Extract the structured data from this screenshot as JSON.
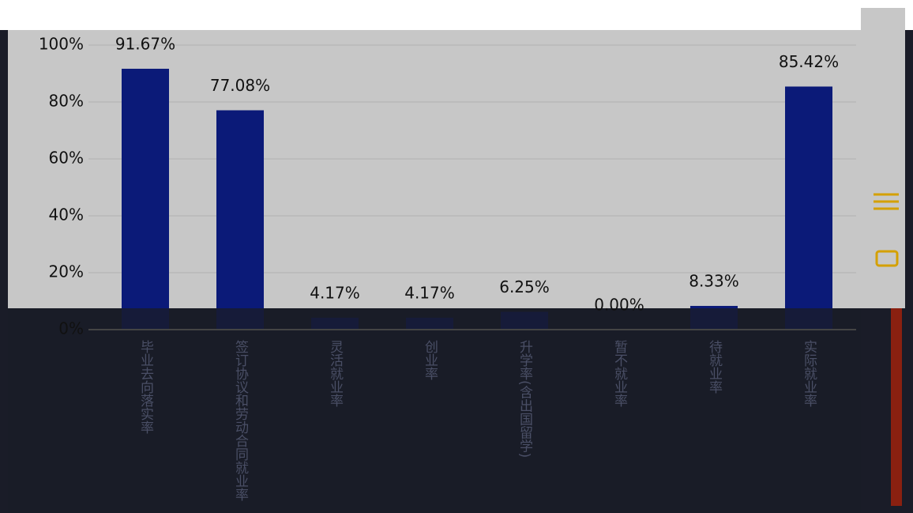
{
  "chart_data": {
    "type": "bar",
    "categories": [
      "毕业去向落实率",
      "签订协议和劳动合同就业率",
      "灵活就业率",
      "创业率",
      "升学率(含出国留学)",
      "暂不就业率",
      "待就业率",
      "实际就业率"
    ],
    "values": [
      91.67,
      77.08,
      4.17,
      4.17,
      6.25,
      0.0,
      8.33,
      85.42
    ],
    "value_labels": [
      "91.67%",
      "77.08%",
      "4.17%",
      "4.17%",
      "6.25%",
      "0.00%",
      "8.33%",
      "85.42%"
    ],
    "color": "#0b1a78",
    "ylim": [
      0,
      100
    ],
    "yticks": [
      {
        "value": 0,
        "label": "0%"
      },
      {
        "value": 20,
        "label": "20%"
      },
      {
        "value": 40,
        "label": "40%"
      },
      {
        "value": 60,
        "label": "60%"
      },
      {
        "value": 80,
        "label": "80%"
      },
      {
        "value": 100,
        "label": "100%"
      }
    ],
    "grid": true
  }
}
